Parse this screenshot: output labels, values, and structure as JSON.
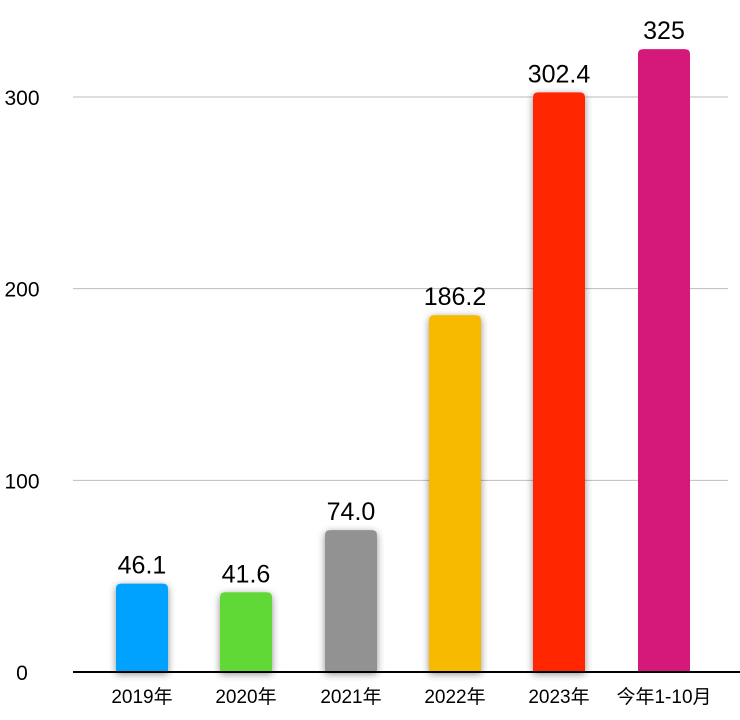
{
  "chart_data": {
    "type": "bar",
    "title": "",
    "xlabel": "",
    "ylabel": "",
    "categories": [
      "2019年",
      "2020年",
      "2021年",
      "2022年",
      "2023年",
      "今年1-10月"
    ],
    "values": [
      46.1,
      41.6,
      74.0,
      186.2,
      302.4,
      325
    ],
    "value_labels": [
      "46.1",
      "41.6",
      "74.0",
      "186.2",
      "302.4",
      "325"
    ],
    "colors": [
      "#00A2FF",
      "#61D836",
      "#929292",
      "#F8BA00",
      "#FF2600",
      "#D5197A"
    ],
    "ylim": [
      0,
      300
    ],
    "yticks": [
      "0",
      "100",
      "200",
      "300"
    ],
    "ytick_values": [
      0,
      100,
      200,
      300
    ],
    "grid": true,
    "legend": "none"
  }
}
